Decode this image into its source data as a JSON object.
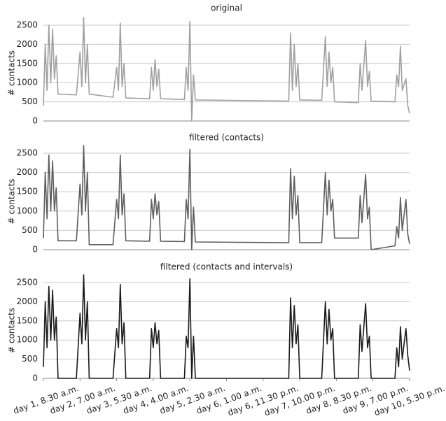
{
  "chart_data": [
    {
      "type": "line",
      "title": "original",
      "y_label": "# contacts",
      "color": "#a0a0a0",
      "x": [
        0,
        0.05,
        0.1,
        0.15,
        0.2,
        0.25,
        0.3,
        0.35,
        0.4,
        0.9,
        1.0,
        1.05,
        1.1,
        1.15,
        1.2,
        1.25,
        1.9,
        2.0,
        2.05,
        2.1,
        2.15,
        2.2,
        2.25,
        2.9,
        2.95,
        3.0,
        3.05,
        3.1,
        3.15,
        3.2,
        3.85,
        3.9,
        3.95,
        4.0,
        4.05,
        4.1,
        4.15,
        6.7,
        6.75,
        6.8,
        6.85,
        6.9,
        6.95,
        7.0,
        7.6,
        7.7,
        7.75,
        7.8,
        7.85,
        7.9,
        7.95,
        8.6,
        8.65,
        8.7,
        8.8,
        8.85,
        8.9,
        8.95,
        9.6,
        9.65,
        9.7,
        9.75,
        9.8,
        9.9,
        9.95,
        10.0
      ],
      "values": [
        400,
        2000,
        800,
        2500,
        1000,
        2400,
        1100,
        1700,
        700,
        680,
        1800,
        900,
        2700,
        1000,
        2000,
        700,
        620,
        1400,
        800,
        2550,
        900,
        1500,
        600,
        580,
        1400,
        800,
        1600,
        900,
        1350,
        580,
        560,
        1400,
        800,
        2600,
        0,
        1200,
        550,
        520,
        2300,
        800,
        2000,
        900,
        1500,
        550,
        540,
        2200,
        900,
        1800,
        1000,
        1400,
        500,
        480,
        1500,
        800,
        2100,
        900,
        1300,
        520,
        500,
        1200,
        900,
        1950,
        800,
        1100,
        400,
        200
      ],
      "xlim": [
        0,
        10
      ],
      "ylim": [
        0,
        2500
      ],
      "yticks": [
        0,
        500,
        1000,
        1500,
        2000,
        2500
      ],
      "grid": true
    },
    {
      "type": "line",
      "title": "filtered (contacts)",
      "y_label": "# contacts",
      "color": "#5e5e5e",
      "x": [
        0,
        0.05,
        0.1,
        0.15,
        0.2,
        0.25,
        0.3,
        0.35,
        0.4,
        0.9,
        1.0,
        1.05,
        1.1,
        1.15,
        1.2,
        1.25,
        1.9,
        2.0,
        2.05,
        2.1,
        2.15,
        2.2,
        2.25,
        2.9,
        2.95,
        3.0,
        3.05,
        3.1,
        3.15,
        3.2,
        3.85,
        3.9,
        3.95,
        4.0,
        4.05,
        4.1,
        4.15,
        6.7,
        6.75,
        6.8,
        6.85,
        6.9,
        6.95,
        7.0,
        7.6,
        7.7,
        7.75,
        7.8,
        7.85,
        7.9,
        7.95,
        8.6,
        8.65,
        8.7,
        8.8,
        8.85,
        8.9,
        8.95,
        9.6,
        9.65,
        9.7,
        9.75,
        9.8,
        9.9,
        9.95,
        10.0
      ],
      "values": [
        300,
        2000,
        800,
        2450,
        1000,
        2300,
        1000,
        1600,
        230,
        230,
        1700,
        900,
        2700,
        1000,
        2000,
        130,
        130,
        1300,
        800,
        2450,
        900,
        1450,
        230,
        220,
        1300,
        800,
        1450,
        900,
        1250,
        220,
        210,
        1300,
        800,
        2600,
        0,
        1100,
        200,
        180,
        2100,
        800,
        1900,
        900,
        1400,
        180,
        180,
        2000,
        900,
        1800,
        1000,
        1300,
        300,
        300,
        1400,
        700,
        1950,
        800,
        1100,
        0,
        100,
        600,
        300,
        1350,
        500,
        1300,
        400,
        150
      ],
      "xlim": [
        0,
        10
      ],
      "ylim": [
        0,
        2500
      ],
      "yticks": [
        0,
        500,
        1000,
        1500,
        2000,
        2500
      ],
      "grid": true
    },
    {
      "type": "line",
      "title": "filtered (contacts and intervals)",
      "y_label": "# contacts",
      "color": "#1a1a1a",
      "x": [
        0,
        0.05,
        0.1,
        0.15,
        0.2,
        0.25,
        0.3,
        0.35,
        0.4,
        0.9,
        1.0,
        1.05,
        1.1,
        1.15,
        1.2,
        1.25,
        1.9,
        2.0,
        2.05,
        2.1,
        2.15,
        2.2,
        2.25,
        2.9,
        2.95,
        3.0,
        3.05,
        3.1,
        3.15,
        3.2,
        3.85,
        3.9,
        3.95,
        4.0,
        4.05,
        4.1,
        4.15,
        6.7,
        6.75,
        6.8,
        6.85,
        6.9,
        6.95,
        7.0,
        7.6,
        7.7,
        7.75,
        7.8,
        7.85,
        7.9,
        7.95,
        8.6,
        8.65,
        8.7,
        8.8,
        8.85,
        8.9,
        8.95,
        9.6,
        9.65,
        9.7,
        9.75,
        9.8,
        9.9,
        9.95,
        10.0
      ],
      "values": [
        300,
        2000,
        800,
        2400,
        1000,
        2300,
        1000,
        1600,
        0,
        0,
        1700,
        900,
        2700,
        1000,
        2000,
        0,
        0,
        1300,
        800,
        2450,
        900,
        1450,
        0,
        0,
        1300,
        800,
        1450,
        900,
        1250,
        0,
        0,
        1100,
        800,
        2600,
        0,
        1100,
        0,
        0,
        2100,
        800,
        1900,
        900,
        1400,
        0,
        0,
        2000,
        900,
        1800,
        1000,
        1300,
        0,
        0,
        1400,
        700,
        1950,
        800,
        1100,
        0,
        0,
        800,
        300,
        1350,
        500,
        1300,
        600,
        200
      ],
      "xlim": [
        0,
        10
      ],
      "ylim": [
        0,
        2500
      ],
      "yticks": [
        0,
        500,
        1000,
        1500,
        2000,
        2500
      ],
      "grid": true,
      "xticks": [
        {
          "value": 0,
          "label": "day 1, 8.30 a.m."
        },
        {
          "value": 1,
          "label": "day 2, 7.00 a.m."
        },
        {
          "value": 2,
          "label": "day 3, 5.30 a.m."
        },
        {
          "value": 3,
          "label": "day 4, 4.00 a.m."
        },
        {
          "value": 4,
          "label": "day 5, 2.30 a.m."
        },
        {
          "value": 5,
          "label": "day 6, 1.00 a.m."
        },
        {
          "value": 6,
          "label": "day 6, 11.30 p.m."
        },
        {
          "value": 7,
          "label": "day 7, 10.00 p.m."
        },
        {
          "value": 8,
          "label": "day 8, 8.30 p.m."
        },
        {
          "value": 9,
          "label": "day 9, 7.00 p.m."
        },
        {
          "value": 10,
          "label": "day 10, 5.30 p.m."
        }
      ]
    }
  ]
}
